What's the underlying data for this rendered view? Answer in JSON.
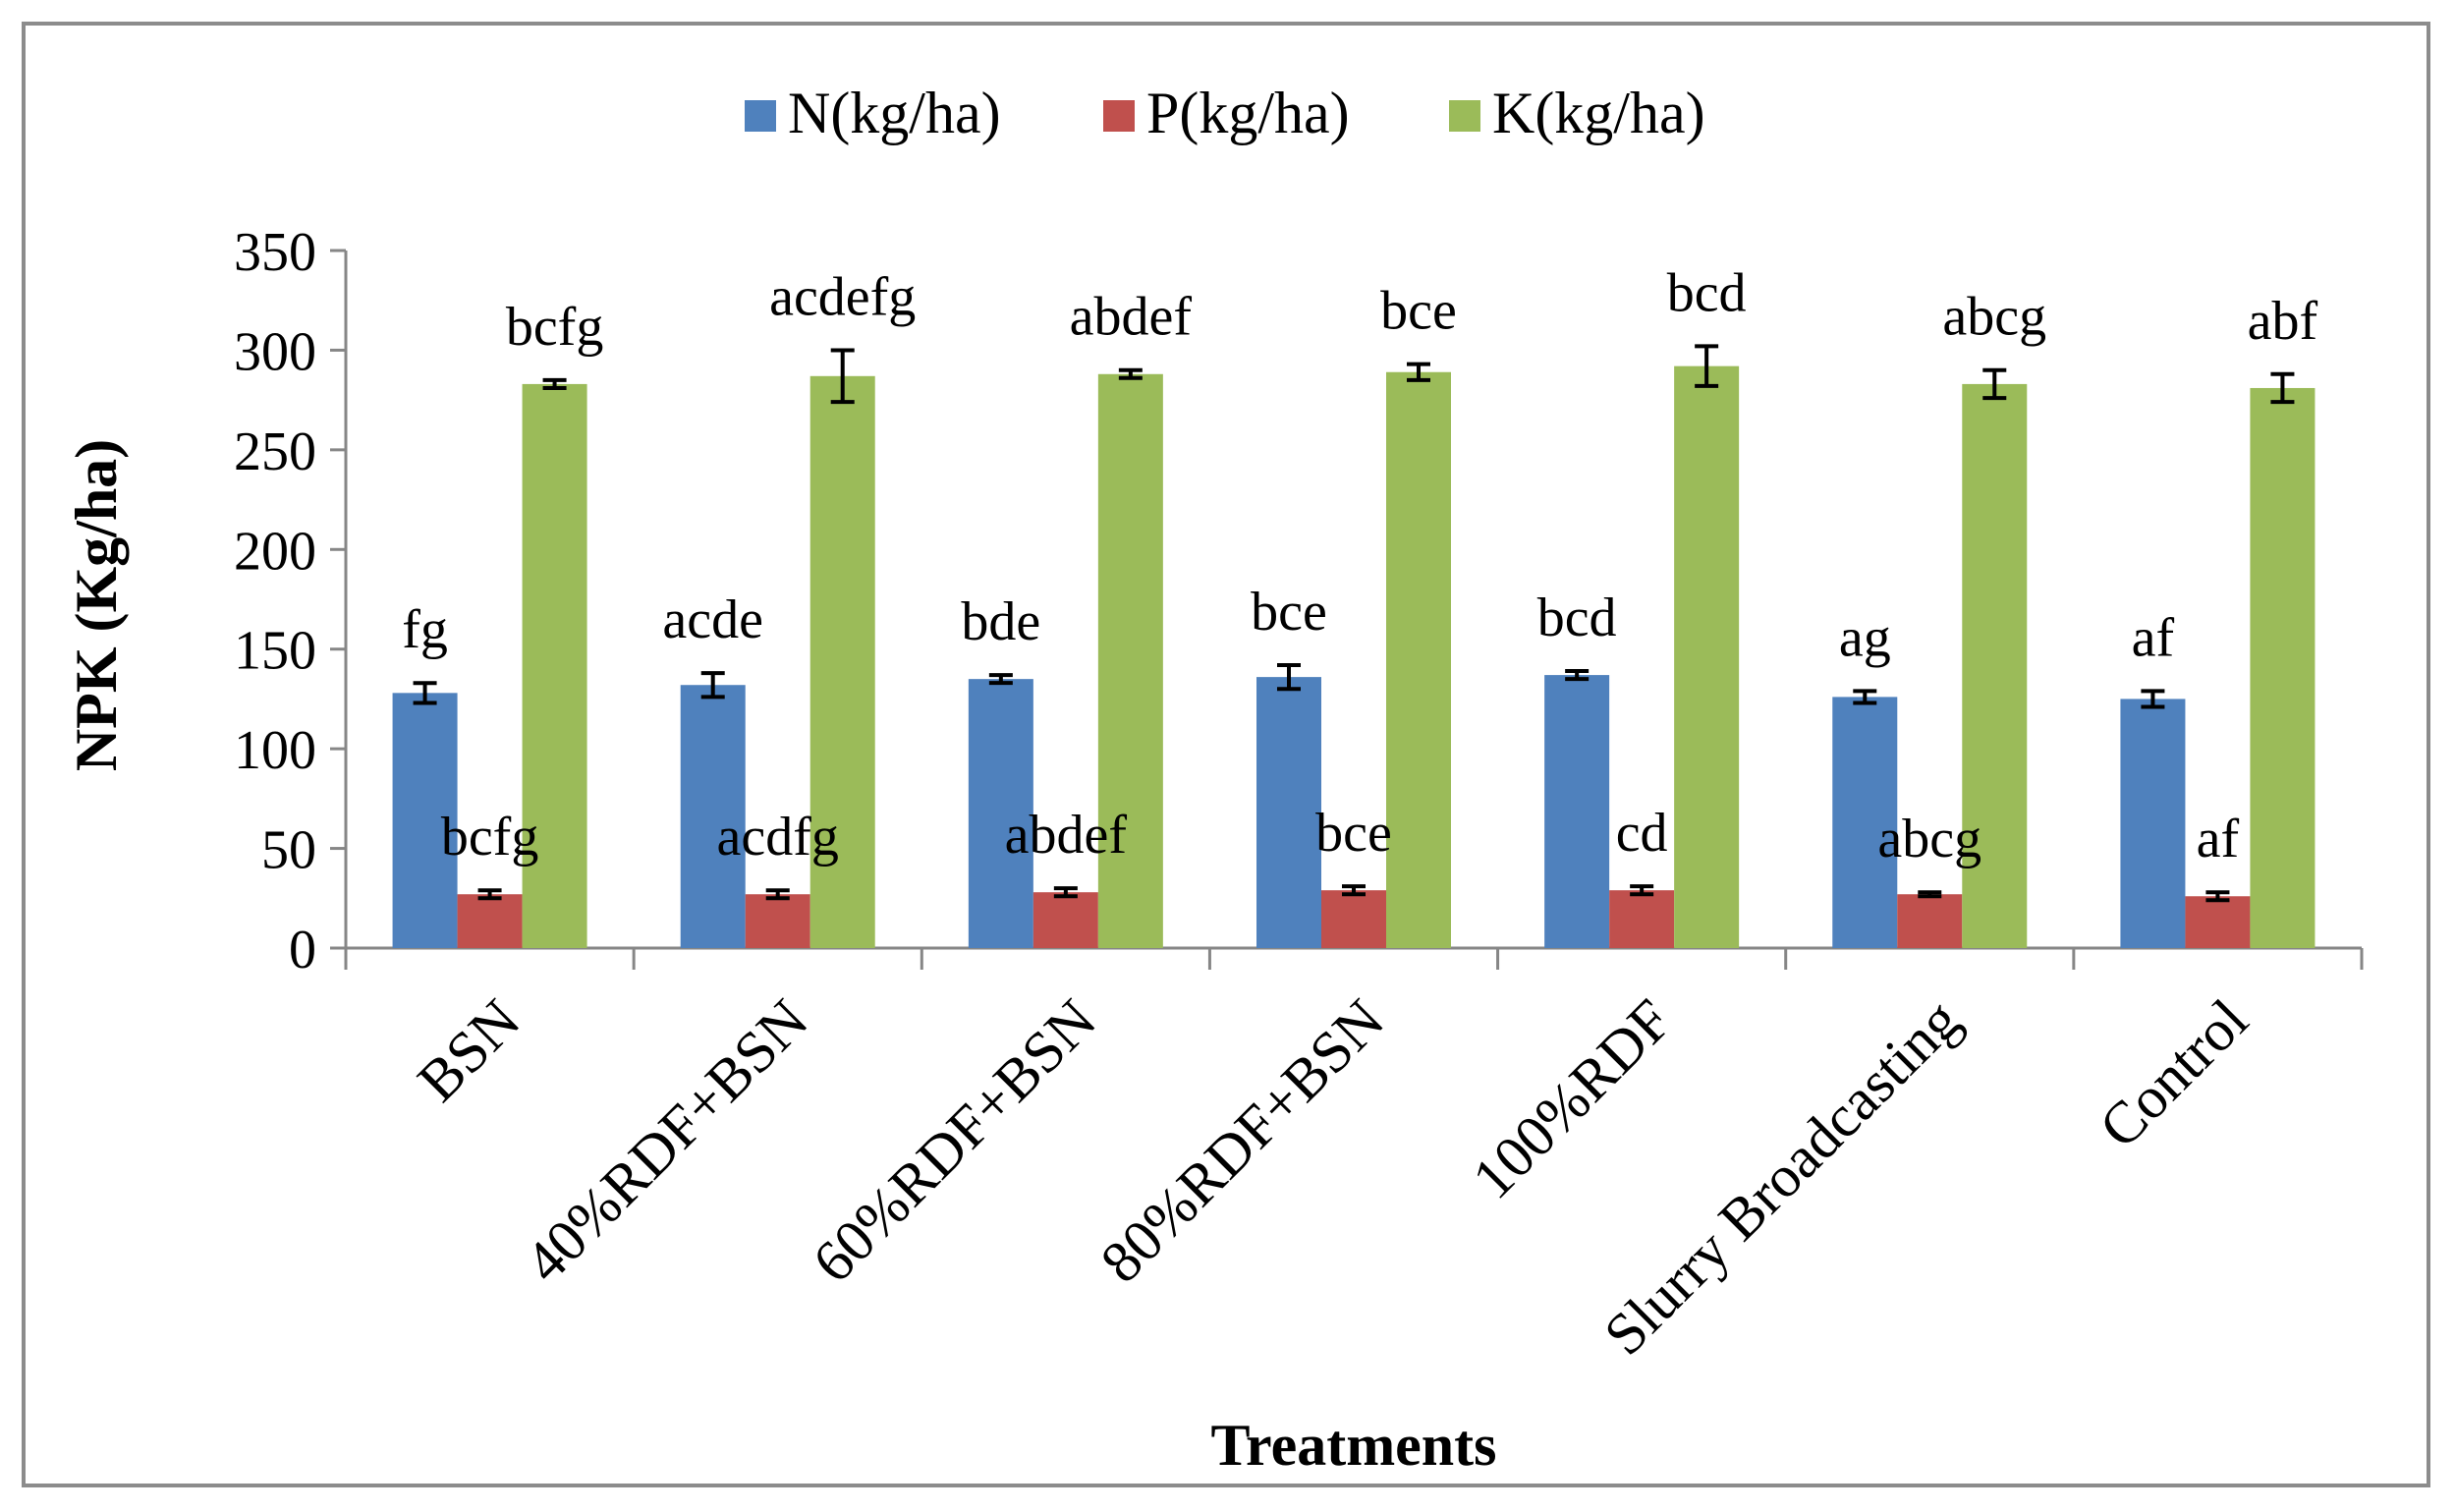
{
  "chart_data": {
    "type": "bar",
    "title": "",
    "xlabel": "Treatments",
    "ylabel": "NPK (Kg/ha)",
    "ylim": [
      0,
      350
    ],
    "yticks": [
      0,
      50,
      100,
      150,
      200,
      250,
      300,
      350
    ],
    "ytick_labels": [
      "0",
      "50",
      "100",
      "150",
      "200",
      "250",
      "300",
      "350"
    ],
    "grid": false,
    "legend_position": "top-center",
    "categories": [
      "BSN",
      "40%RDF+BSN",
      "60%RDF+BSN",
      "80%RDF+BSN",
      "100%RDF",
      "Slurry Broadcasting",
      "Control"
    ],
    "series": [
      {
        "name": "N(kg/ha)",
        "color": "#4F81BD",
        "values": [
          128,
          132,
          135,
          136,
          137,
          126,
          125
        ],
        "errors": [
          4,
          5,
          1,
          5,
          1,
          2,
          3
        ],
        "labels": [
          "fg",
          "acde",
          "bde",
          "bce",
          "bcd",
          "ag",
          "af"
        ]
      },
      {
        "name": "P(kg/ha)",
        "color": "#C0504D",
        "values": [
          27,
          27,
          28,
          29,
          29,
          27,
          26
        ],
        "errors": [
          1,
          1,
          1,
          1,
          1,
          0,
          1
        ],
        "labels": [
          "bcfg",
          "acdfg",
          "abdef",
          "bce",
          "cd",
          "abcg",
          "af"
        ]
      },
      {
        "name": "K(kg/ha)",
        "color": "#9BBB59",
        "values": [
          283,
          287,
          288,
          289,
          292,
          283,
          281
        ],
        "errors": [
          1,
          12,
          1,
          3,
          9,
          6,
          6
        ],
        "labels": [
          "bcfg",
          "acdefg",
          "abdef",
          "bce",
          "bcd",
          "abcg",
          "abf"
        ]
      }
    ]
  }
}
